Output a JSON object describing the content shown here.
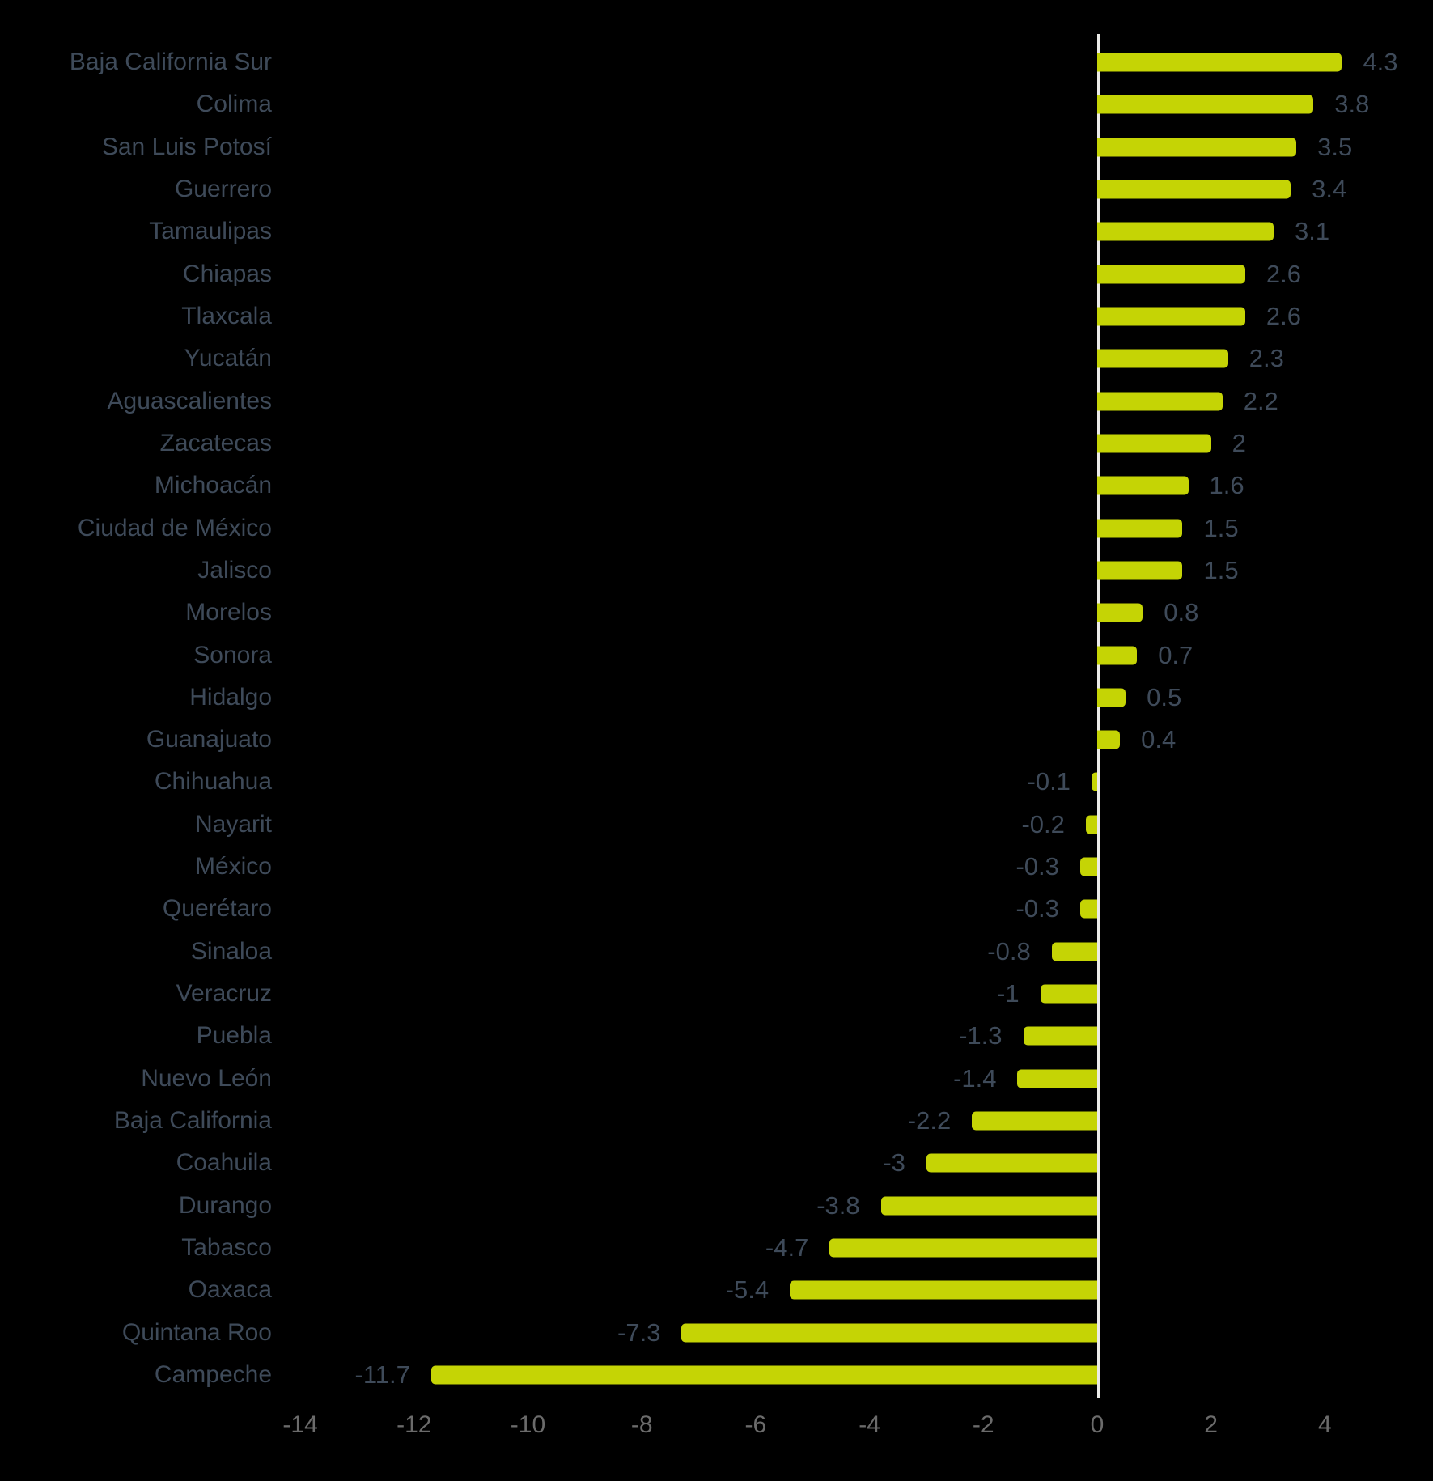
{
  "chart_data": {
    "type": "bar",
    "orientation": "horizontal",
    "categories": [
      "Baja California Sur",
      "Colima",
      "San Luis Potosí",
      "Guerrero",
      "Tamaulipas",
      "Chiapas",
      "Tlaxcala",
      "Yucatán",
      "Aguascalientes",
      "Zacatecas",
      "Michoacán",
      "Ciudad de México",
      "Jalisco",
      "Morelos",
      "Sonora",
      "Hidalgo",
      "Guanajuato",
      "Chihuahua",
      "Nayarit",
      "México",
      "Querétaro",
      "Sinaloa",
      "Veracruz",
      "Puebla",
      "Nuevo León",
      "Baja California",
      "Coahuila",
      "Durango",
      "Tabasco",
      "Oaxaca",
      "Quintana Roo",
      "Campeche"
    ],
    "values": [
      4.3,
      3.8,
      3.5,
      3.4,
      3.1,
      2.6,
      2.6,
      2.3,
      2.2,
      2,
      1.6,
      1.5,
      1.5,
      0.8,
      0.7,
      0.5,
      0.4,
      -0.1,
      -0.2,
      -0.3,
      -0.3,
      -0.8,
      -1,
      -1.3,
      -1.4,
      -2.2,
      -3,
      -3.8,
      -4.7,
      -5.4,
      -7.3,
      -11.7
    ],
    "value_labels": [
      "4.3",
      "3.8",
      "3.5",
      "3.4",
      "3.1",
      "2.6",
      "2.6",
      "2.3",
      "2.2",
      "2",
      "1.6",
      "1.5",
      "1.5",
      "0.8",
      "0.7",
      "0.5",
      "0.4",
      "-0.1",
      "-0.2",
      "-0.3",
      "-0.3",
      "-0.8",
      "-1",
      "-1.3",
      "-1.4",
      "-2.2",
      "-3",
      "-3.8",
      "-4.7",
      "-5.4",
      "-7.3",
      "-11.7"
    ],
    "x_ticks": [
      "-14",
      "-12",
      "-10",
      "-8",
      "-6",
      "-4",
      "-2",
      "0",
      "2",
      "4"
    ],
    "x_tick_values": [
      -14,
      -12,
      -10,
      -8,
      -6,
      -4,
      -2,
      0,
      2,
      4
    ],
    "xlim": [
      -14.3,
      5.9
    ],
    "title": "",
    "xlabel": "",
    "ylabel": "",
    "grid": false,
    "legend": false,
    "colors": {
      "background": "#000000",
      "bar": "#c5d405",
      "category_label": "#3e4a59",
      "value_label": "#3e4a59",
      "tick_label": "#6b6b6b",
      "zero_line": "#ebebe8"
    }
  }
}
